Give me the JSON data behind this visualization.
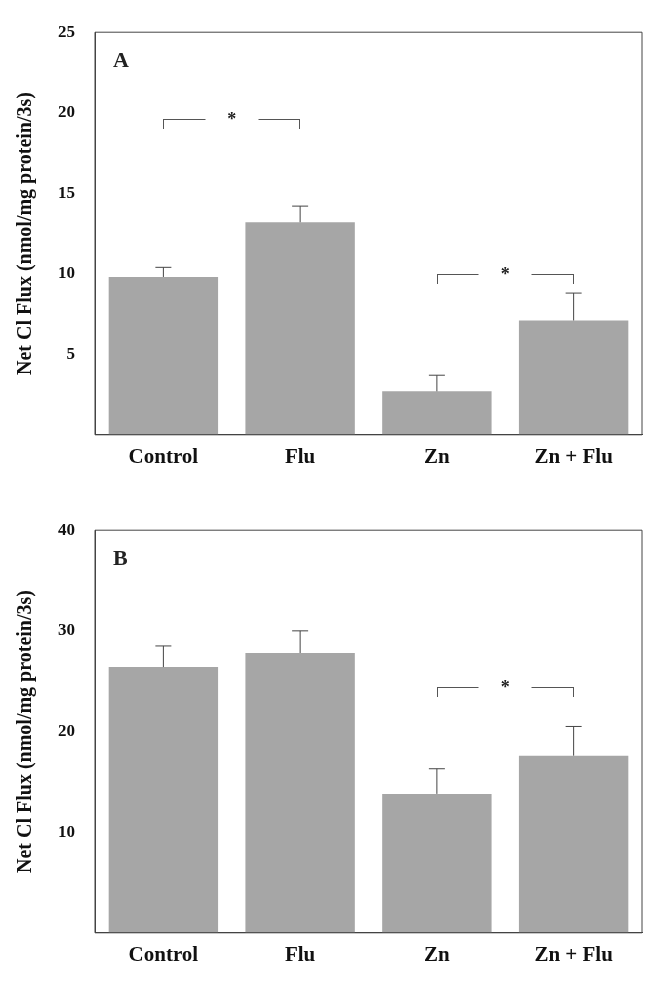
{
  "chart_data": [
    {
      "type": "bar",
      "title": "A",
      "ylabel": "Net Cl Flux (nmol/mg protein/3s)",
      "categories": [
        "Control",
        "Flu",
        "Zn",
        "Zn + Flu"
      ],
      "values": [
        9.8,
        13.2,
        2.7,
        7.1
      ],
      "errors": [
        [
          9.8,
          10.4
        ],
        [
          13.2,
          14.2
        ],
        [
          2.7,
          3.7
        ],
        [
          7.1,
          8.8
        ]
      ],
      "color": "#a6a6a6",
      "ylim": [
        0,
        25
      ],
      "yticks": [
        5,
        10,
        15,
        20,
        25
      ],
      "grid": false,
      "legend": false,
      "annotations": [
        "*",
        "*"
      ]
    },
    {
      "type": "bar",
      "title": "B",
      "ylabel": "Net Cl Flux (nmol/mg protein/3s)",
      "categories": [
        "Control",
        "Flu",
        "Zn",
        "Zn + Flu"
      ],
      "values": [
        26.4,
        27.8,
        13.8,
        17.6
      ],
      "errors": [
        [
          26.4,
          28.5
        ],
        [
          27.8,
          30.0
        ],
        [
          13.8,
          16.3
        ],
        [
          17.6,
          20.5
        ]
      ],
      "color": "#a6a6a6",
      "ylim": [
        0,
        40
      ],
      "yticks": [
        10,
        20,
        30,
        40
      ],
      "grid": false,
      "legend": false,
      "annotations": [
        "*"
      ]
    }
  ]
}
